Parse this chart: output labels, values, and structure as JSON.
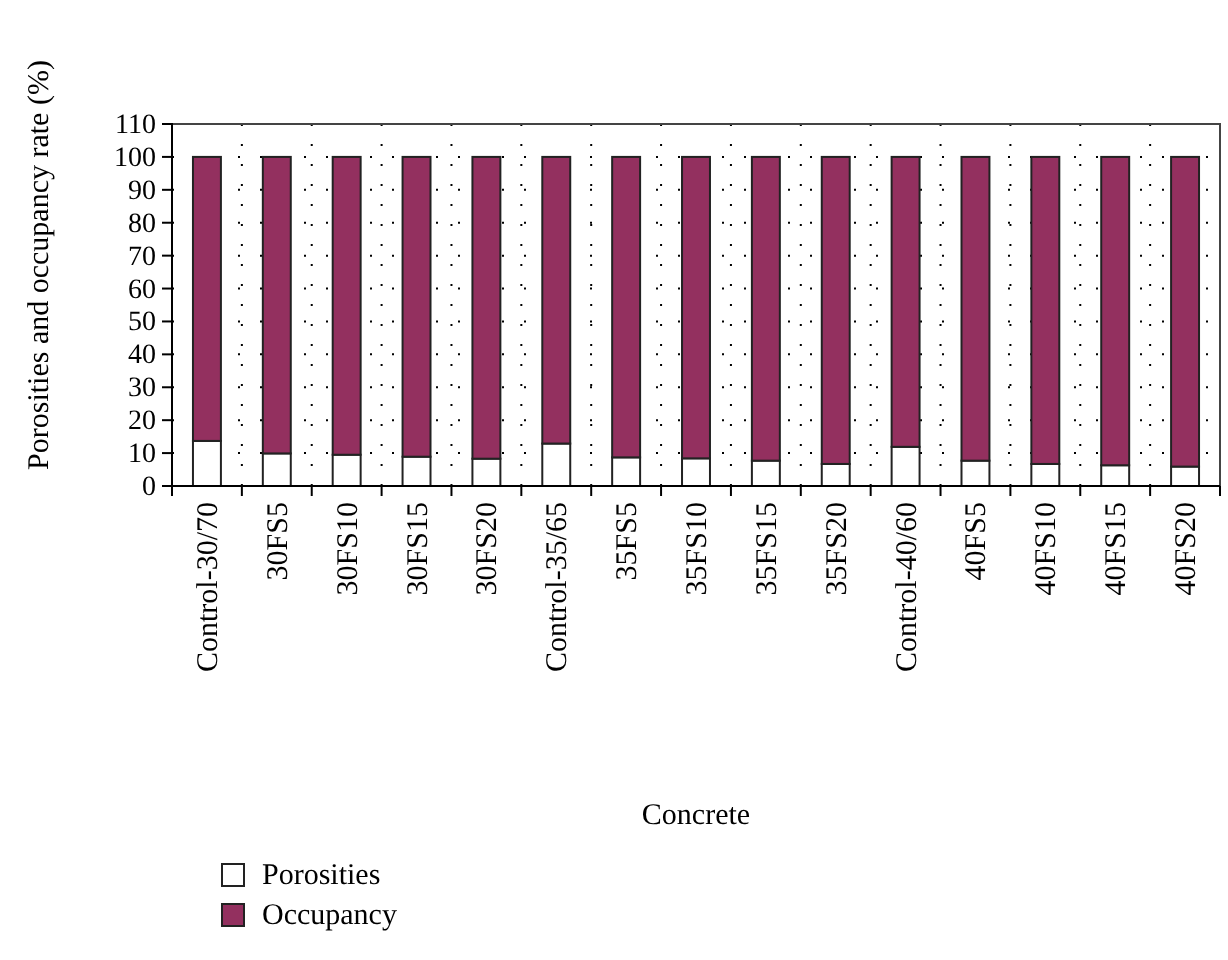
{
  "chart_data": {
    "type": "bar",
    "stacked": true,
    "xlabel": "Concrete",
    "ylabel": "Porosities and occupancy rate (%)",
    "categories": [
      "Control-30/70",
      "30FS5",
      "30FS10",
      "30FS15",
      "30FS20",
      "Control-35/65",
      "35FS5",
      "35FS10",
      "35FS15",
      "35FS20",
      "Control-40/60",
      "40FS5",
      "40FS10",
      "40FS15",
      "40FS20"
    ],
    "series": [
      {
        "name": "Porosities",
        "color": "#ffffff",
        "values": [
          13.7,
          9.9,
          9.5,
          8.9,
          8.3,
          12.9,
          8.7,
          8.4,
          7.7,
          6.7,
          11.9,
          7.7,
          6.7,
          6.3,
          5.9
        ]
      },
      {
        "name": "Occupancy",
        "color": "#93305f",
        "values": [
          86.3,
          90.1,
          90.5,
          91.1,
          91.7,
          87.1,
          91.3,
          91.6,
          92.3,
          93.3,
          88.1,
          92.3,
          93.3,
          93.7,
          94.1
        ]
      }
    ],
    "ylim": [
      0,
      110
    ],
    "yticks": [
      0,
      10,
      20,
      30,
      40,
      50,
      60,
      70,
      80,
      90,
      100,
      110
    ],
    "grid": true,
    "legend": "bottom left"
  }
}
